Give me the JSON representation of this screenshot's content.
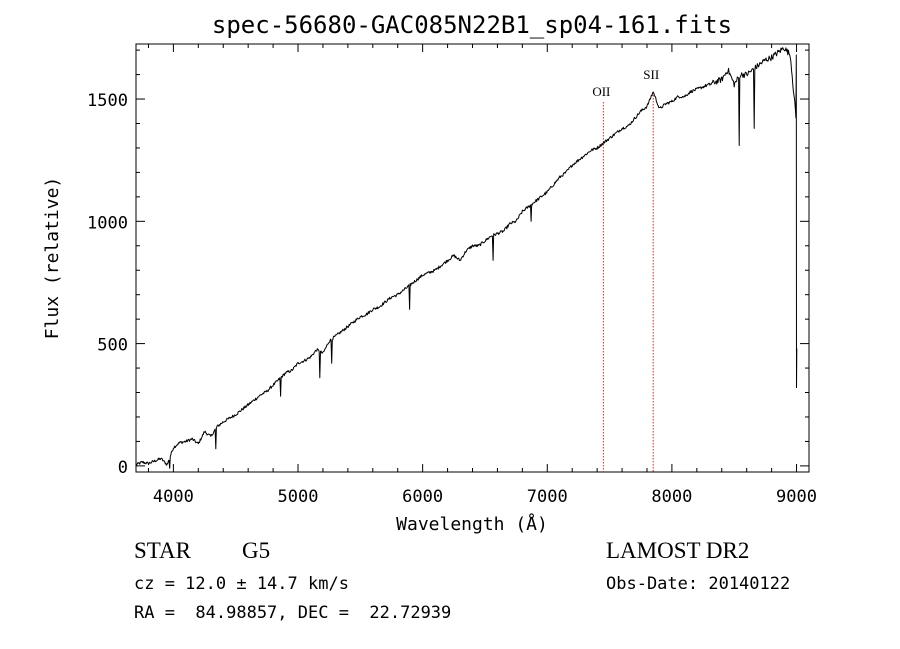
{
  "chart_data": {
    "type": "line",
    "title": "spec-56680-GAC085N22B1_sp04-161.fits",
    "xlabel": "Wavelength (Å)",
    "ylabel": "Flux (relative)",
    "xlim": [
      3700,
      9100
    ],
    "ylim": [
      -25,
      1725
    ],
    "xticks": [
      4000,
      5000,
      6000,
      7000,
      8000,
      9000
    ],
    "yticks": [
      0,
      500,
      1000,
      1500
    ],
    "series": [
      {
        "color": "#000000",
        "x": [
          3700,
          3750,
          3800,
          3850,
          3900,
          3950,
          4000,
          4050,
          4100,
          4150,
          4200,
          4250,
          4300,
          4350,
          4400,
          4450,
          4500,
          4550,
          4600,
          4650,
          4700,
          4750,
          4800,
          4850,
          4900,
          4950,
          5000,
          5050,
          5100,
          5150,
          5200,
          5250,
          5300,
          5350,
          5400,
          5450,
          5500,
          5550,
          5600,
          5650,
          5700,
          5750,
          5800,
          5850,
          5900,
          5950,
          6000,
          6050,
          6100,
          6150,
          6200,
          6250,
          6300,
          6350,
          6400,
          6450,
          6500,
          6550,
          6600,
          6650,
          6700,
          6750,
          6800,
          6850,
          6900,
          6950,
          7000,
          7050,
          7100,
          7150,
          7200,
          7250,
          7300,
          7350,
          7400,
          7450,
          7500,
          7550,
          7600,
          7650,
          7700,
          7750,
          7800,
          7850,
          7900,
          7950,
          8000,
          8050,
          8100,
          8150,
          8200,
          8250,
          8300,
          8350,
          8400,
          8450,
          8500,
          8550,
          8600,
          8650,
          8700,
          8750,
          8800,
          8850,
          8900,
          8950,
          9000
        ],
        "y": [
          5,
          15,
          10,
          20,
          30,
          5,
          75,
          95,
          100,
          110,
          90,
          140,
          120,
          160,
          180,
          195,
          210,
          230,
          250,
          270,
          290,
          305,
          330,
          355,
          380,
          390,
          420,
          430,
          445,
          475,
          460,
          510,
          530,
          550,
          570,
          590,
          610,
          620,
          640,
          650,
          670,
          690,
          700,
          720,
          740,
          760,
          780,
          790,
          800,
          820,
          840,
          860,
          840,
          880,
          900,
          900,
          920,
          940,
          950,
          960,
          990,
          1000,
          1040,
          1060,
          1080,
          1100,
          1120,
          1150,
          1180,
          1200,
          1230,
          1250,
          1270,
          1290,
          1300,
          1320,
          1340,
          1360,
          1380,
          1390,
          1420,
          1450,
          1470,
          1530,
          1460,
          1480,
          1490,
          1510,
          1510,
          1530,
          1540,
          1550,
          1560,
          1570,
          1580,
          1620,
          1560,
          1600,
          1600,
          1620,
          1640,
          1660,
          1670,
          1690,
          1710,
          1680,
          1400
        ]
      }
    ],
    "dips": [
      {
        "x": 3968,
        "y": -10
      },
      {
        "x": 4340,
        "y": 70
      },
      {
        "x": 4861,
        "y": 285
      },
      {
        "x": 5175,
        "y": 360
      },
      {
        "x": 5270,
        "y": 420
      },
      {
        "x": 5893,
        "y": 640
      },
      {
        "x": 6563,
        "y": 840
      },
      {
        "x": 6870,
        "y": 1000
      },
      {
        "x": 8542,
        "y": 1310
      },
      {
        "x": 8662,
        "y": 1380
      },
      {
        "x": 9000,
        "y": 320
      }
    ],
    "lines": [
      {
        "label": "OII",
        "x": 7450,
        "color": "#c0392b"
      },
      {
        "label": "SII",
        "x": 7850,
        "color": "#c0392b"
      }
    ]
  },
  "info": {
    "class_label": "STAR",
    "subclass": "G5",
    "survey": "LAMOST DR2",
    "cz": "cz = 12.0 ± 14.7 km/s",
    "obs_date": "Obs-Date: 20140122",
    "coords": "RA =  84.98857, DEC =  22.72939"
  }
}
